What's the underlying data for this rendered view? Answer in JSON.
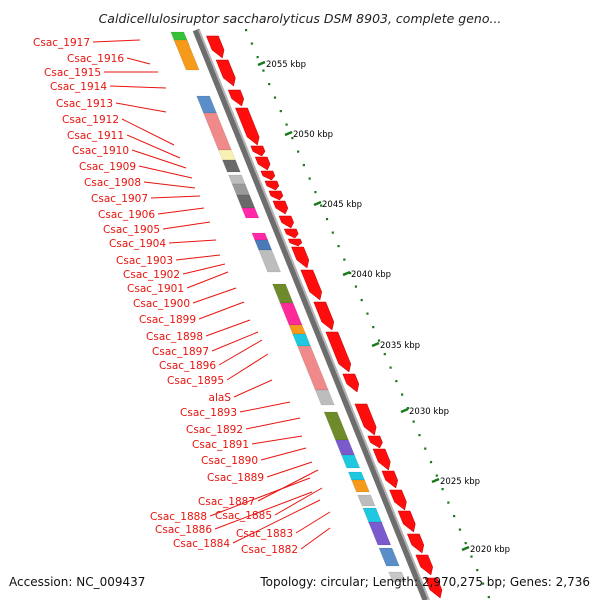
{
  "title": "Caldicellulosiruptor saccharolyticus DSM 8903, complete geno...",
  "accession": "Accession: NC_009437",
  "topology": "Topology: circular; Length: 2,970,275 bp; Genes: 2,736",
  "colors": {
    "label": "#e8140f",
    "forward_gene": "#ff0d0d",
    "backbone": "#8a8a8a",
    "tick": "#1a7a1a"
  },
  "scale_ticks": [
    "2055 kbp",
    "2050 kbp",
    "2045 kbp",
    "2040 kbp",
    "2035 kbp",
    "2030 kbp",
    "2025 kbp",
    "2020 kbp"
  ],
  "gene_labels": [
    "Csac_1917",
    "Csac_1916",
    "Csac_1915",
    "Csac_1914",
    "Csac_1913",
    "Csac_1912",
    "Csac_1911",
    "Csac_1910",
    "Csac_1909",
    "Csac_1908",
    "Csac_1907",
    "Csac_1906",
    "Csac_1905",
    "Csac_1904",
    "Csac_1903",
    "Csac_1902",
    "Csac_1901",
    "Csac_1900",
    "Csac_1899",
    "Csac_1898",
    "Csac_1897",
    "Csac_1896",
    "Csac_1895",
    "alaS",
    "Csac_1893",
    "Csac_1892",
    "Csac_1891",
    "Csac_1890",
    "Csac_1889",
    "Csac_1887",
    "Csac_1888",
    "Csac_1885",
    "Csac_1886",
    "Csac_1884",
    "Csac_1883",
    "Csac_1882"
  ]
}
